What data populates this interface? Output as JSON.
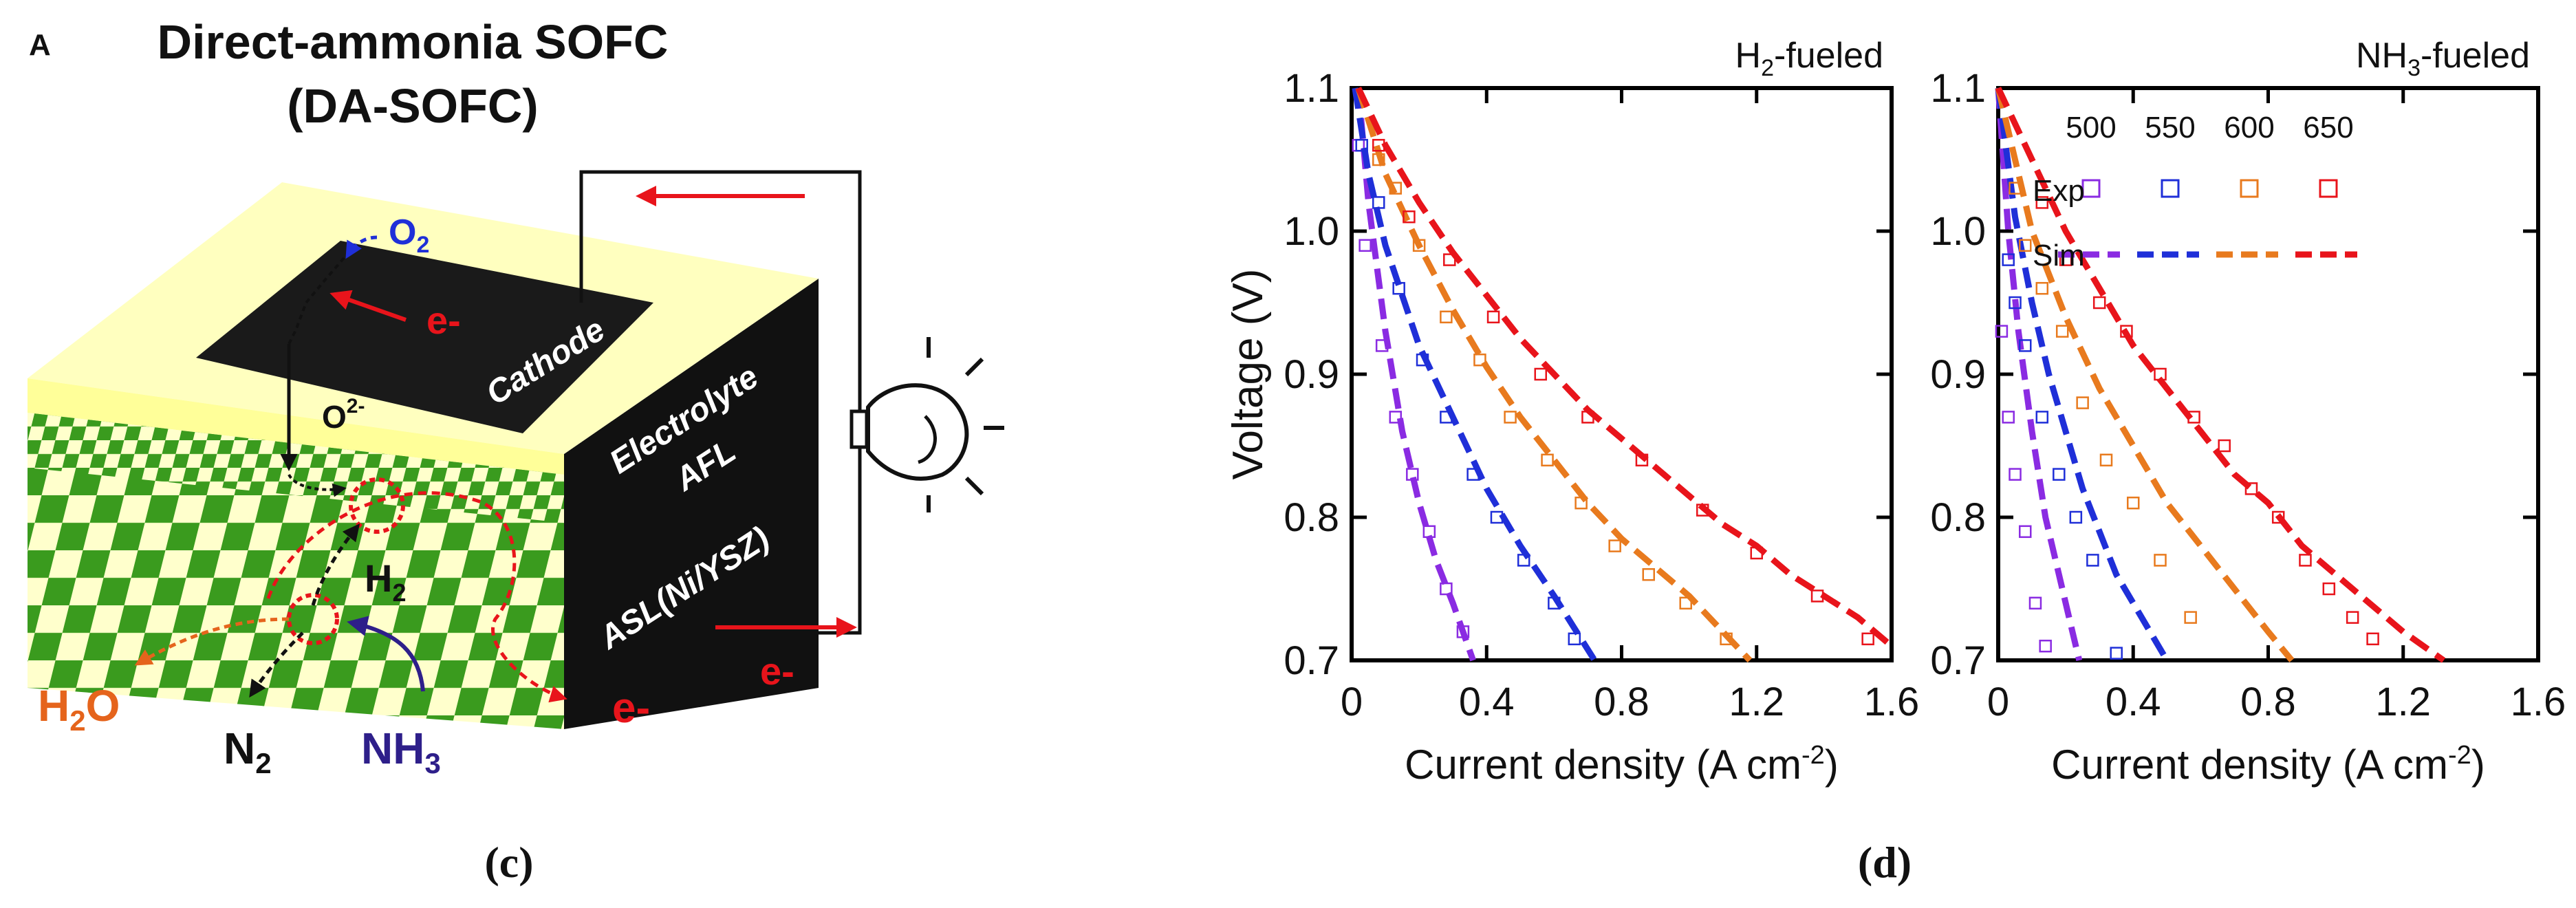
{
  "figure": {
    "panel_c_label": "(c)",
    "panel_d_label": "(d)"
  },
  "diagram": {
    "corner_letter": "A",
    "title_line1": "Direct-ammonia SOFC",
    "title_line2": "(DA-SOFC)",
    "cathode": "Cathode",
    "electrolyte": "Electrolyte",
    "afl": "AFL",
    "asl": "ASL(Ni/YSZ)",
    "o2_main": "O",
    "o2_sub": "2",
    "o2minus_main": "O",
    "o2minus_sup": "2-",
    "h2_main": "H",
    "h2_sub": "2",
    "h2o_h": "H",
    "h2o_sub": "2",
    "h2o_o": "O",
    "n2_main": "N",
    "n2_sub": "2",
    "nh3_main": "NH",
    "nh3_sub": "3",
    "electron": "e-",
    "colors": {
      "electron": "#e8141b",
      "oxygen": "#1f2fd8",
      "water": "#e5641c",
      "ammonia": "#2e1f8a",
      "green": "#3a9b1e",
      "cream": "#ffffcc"
    }
  },
  "chart_data": [
    {
      "type": "line",
      "title_main": "H",
      "title_sub": "2",
      "title_rest": "-fueled",
      "ylabel": "Voltage (V)",
      "xlabel_main": "Current density (A cm",
      "xlabel_sup": "-2",
      "xlabel_end": ")",
      "xlim": [
        0,
        1.6
      ],
      "ylim": [
        0.7,
        1.1
      ],
      "x_ticks": [
        "0",
        "0.4",
        "0.8",
        "1.2",
        "1.6"
      ],
      "y_ticks": [
        "0.7",
        "0.8",
        "0.9",
        "1.0",
        "1.1"
      ],
      "series": [
        {
          "temp": 500,
          "color": "#8a2be2",
          "exp": [
            [
              0.02,
              1.06
            ],
            [
              0.04,
              0.99
            ],
            [
              0.09,
              0.92
            ],
            [
              0.13,
              0.87
            ],
            [
              0.18,
              0.83
            ],
            [
              0.23,
              0.79
            ],
            [
              0.28,
              0.75
            ],
            [
              0.33,
              0.72
            ]
          ],
          "sim": [
            [
              0.02,
              1.1
            ],
            [
              0.05,
              1.02
            ],
            [
              0.1,
              0.93
            ],
            [
              0.15,
              0.86
            ],
            [
              0.2,
              0.81
            ],
            [
              0.25,
              0.77
            ],
            [
              0.3,
              0.74
            ],
            [
              0.36,
              0.7
            ]
          ]
        },
        {
          "temp": 550,
          "color": "#1f2fd8",
          "exp": [
            [
              0.03,
              1.06
            ],
            [
              0.08,
              1.02
            ],
            [
              0.14,
              0.96
            ],
            [
              0.21,
              0.91
            ],
            [
              0.28,
              0.87
            ],
            [
              0.36,
              0.83
            ],
            [
              0.43,
              0.8
            ],
            [
              0.51,
              0.77
            ],
            [
              0.6,
              0.74
            ],
            [
              0.66,
              0.715
            ]
          ],
          "sim": [
            [
              0.01,
              1.1
            ],
            [
              0.05,
              1.04
            ],
            [
              0.1,
              0.99
            ],
            [
              0.2,
              0.92
            ],
            [
              0.3,
              0.87
            ],
            [
              0.4,
              0.82
            ],
            [
              0.5,
              0.78
            ],
            [
              0.6,
              0.745
            ],
            [
              0.72,
              0.7
            ]
          ]
        },
        {
          "temp": 600,
          "color": "#e87a1e",
          "exp": [
            [
              0.08,
              1.05
            ],
            [
              0.13,
              1.03
            ],
            [
              0.2,
              0.99
            ],
            [
              0.28,
              0.94
            ],
            [
              0.38,
              0.91
            ],
            [
              0.47,
              0.87
            ],
            [
              0.58,
              0.84
            ],
            [
              0.68,
              0.81
            ],
            [
              0.78,
              0.78
            ],
            [
              0.88,
              0.76
            ],
            [
              0.99,
              0.74
            ],
            [
              1.11,
              0.715
            ]
          ],
          "sim": [
            [
              0.02,
              1.1
            ],
            [
              0.1,
              1.04
            ],
            [
              0.2,
              0.99
            ],
            [
              0.3,
              0.945
            ],
            [
              0.4,
              0.905
            ],
            [
              0.5,
              0.87
            ],
            [
              0.6,
              0.84
            ],
            [
              0.7,
              0.81
            ],
            [
              0.8,
              0.785
            ],
            [
              0.9,
              0.765
            ],
            [
              1.0,
              0.745
            ],
            [
              1.1,
              0.72
            ],
            [
              1.18,
              0.7
            ]
          ]
        },
        {
          "temp": 650,
          "color": "#e8141b",
          "exp": [
            [
              0.08,
              1.06
            ],
            [
              0.17,
              1.01
            ],
            [
              0.29,
              0.98
            ],
            [
              0.42,
              0.94
            ],
            [
              0.56,
              0.9
            ],
            [
              0.7,
              0.87
            ],
            [
              0.86,
              0.84
            ],
            [
              1.04,
              0.805
            ],
            [
              1.2,
              0.775
            ],
            [
              1.38,
              0.745
            ],
            [
              1.53,
              0.715
            ]
          ],
          "sim": [
            [
              0.02,
              1.1
            ],
            [
              0.1,
              1.06
            ],
            [
              0.2,
              1.02
            ],
            [
              0.3,
              0.985
            ],
            [
              0.4,
              0.955
            ],
            [
              0.5,
              0.925
            ],
            [
              0.6,
              0.9
            ],
            [
              0.7,
              0.875
            ],
            [
              0.8,
              0.855
            ],
            [
              0.9,
              0.835
            ],
            [
              1.0,
              0.815
            ],
            [
              1.1,
              0.795
            ],
            [
              1.2,
              0.78
            ],
            [
              1.3,
              0.76
            ],
            [
              1.4,
              0.745
            ],
            [
              1.5,
              0.73
            ],
            [
              1.6,
              0.71
            ]
          ]
        }
      ]
    },
    {
      "type": "line",
      "title_main": "NH",
      "title_sub": "3",
      "title_rest": "-fueled",
      "xlabel_main": "Current density (A cm",
      "xlabel_sup": "-2",
      "xlabel_end": ")",
      "xlim": [
        0,
        1.6
      ],
      "ylim": [
        0.7,
        1.1
      ],
      "x_ticks": [
        "0",
        "0.4",
        "0.8",
        "1.2",
        "1.6"
      ],
      "y_ticks": [
        "0.7",
        "0.8",
        "0.9",
        "1.0",
        "1.1"
      ],
      "legend": {
        "temps": [
          "500",
          "550",
          "600",
          "650"
        ],
        "exp_label": "Exp",
        "sim_label": "Sim"
      },
      "series": [
        {
          "temp": 500,
          "color": "#8a2be2",
          "exp": [
            [
              0.01,
              0.93
            ],
            [
              0.03,
              0.87
            ],
            [
              0.05,
              0.83
            ],
            [
              0.08,
              0.79
            ],
            [
              0.11,
              0.74
            ],
            [
              0.14,
              0.71
            ]
          ],
          "sim": [
            [
              0.0,
              1.1
            ],
            [
              0.03,
              1.0
            ],
            [
              0.06,
              0.93
            ],
            [
              0.1,
              0.86
            ],
            [
              0.14,
              0.8
            ],
            [
              0.18,
              0.76
            ],
            [
              0.22,
              0.72
            ],
            [
              0.24,
              0.7
            ]
          ]
        },
        {
          "temp": 550,
          "color": "#1f2fd8",
          "exp": [
            [
              0.03,
              0.98
            ],
            [
              0.05,
              0.95
            ],
            [
              0.08,
              0.92
            ],
            [
              0.13,
              0.87
            ],
            [
              0.18,
              0.83
            ],
            [
              0.23,
              0.8
            ],
            [
              0.28,
              0.77
            ],
            [
              0.35,
              0.705
            ]
          ],
          "sim": [
            [
              0.0,
              1.1
            ],
            [
              0.05,
              1.01
            ],
            [
              0.1,
              0.95
            ],
            [
              0.15,
              0.9
            ],
            [
              0.2,
              0.86
            ],
            [
              0.25,
              0.82
            ],
            [
              0.3,
              0.79
            ],
            [
              0.35,
              0.76
            ],
            [
              0.4,
              0.74
            ],
            [
              0.45,
              0.72
            ],
            [
              0.5,
              0.7
            ]
          ]
        },
        {
          "temp": 600,
          "color": "#e87a1e",
          "exp": [
            [
              0.05,
              1.03
            ],
            [
              0.08,
              0.99
            ],
            [
              0.13,
              0.96
            ],
            [
              0.19,
              0.93
            ],
            [
              0.25,
              0.88
            ],
            [
              0.32,
              0.84
            ],
            [
              0.4,
              0.81
            ],
            [
              0.48,
              0.77
            ],
            [
              0.57,
              0.73
            ]
          ],
          "sim": [
            [
              0.0,
              1.1
            ],
            [
              0.05,
              1.05
            ],
            [
              0.1,
              1.0
            ],
            [
              0.2,
              0.94
            ],
            [
              0.3,
              0.89
            ],
            [
              0.4,
              0.85
            ],
            [
              0.5,
              0.81
            ],
            [
              0.6,
              0.78
            ],
            [
              0.7,
              0.75
            ],
            [
              0.8,
              0.72
            ],
            [
              0.87,
              0.7
            ]
          ]
        },
        {
          "temp": 650,
          "color": "#e8141b",
          "exp": [
            [
              0.13,
              1.02
            ],
            [
              0.2,
              0.98
            ],
            [
              0.3,
              0.95
            ],
            [
              0.38,
              0.93
            ],
            [
              0.48,
              0.9
            ],
            [
              0.58,
              0.87
            ],
            [
              0.67,
              0.85
            ],
            [
              0.75,
              0.82
            ],
            [
              0.83,
              0.8
            ],
            [
              0.91,
              0.77
            ],
            [
              0.98,
              0.75
            ],
            [
              1.05,
              0.73
            ],
            [
              1.11,
              0.715
            ]
          ],
          "sim": [
            [
              0.0,
              1.1
            ],
            [
              0.1,
              1.05
            ],
            [
              0.2,
              1.0
            ],
            [
              0.3,
              0.96
            ],
            [
              0.4,
              0.92
            ],
            [
              0.5,
              0.89
            ],
            [
              0.6,
              0.86
            ],
            [
              0.7,
              0.83
            ],
            [
              0.8,
              0.81
            ],
            [
              0.9,
              0.78
            ],
            [
              1.0,
              0.76
            ],
            [
              1.1,
              0.74
            ],
            [
              1.2,
              0.72
            ],
            [
              1.32,
              0.7
            ]
          ]
        }
      ]
    }
  ]
}
